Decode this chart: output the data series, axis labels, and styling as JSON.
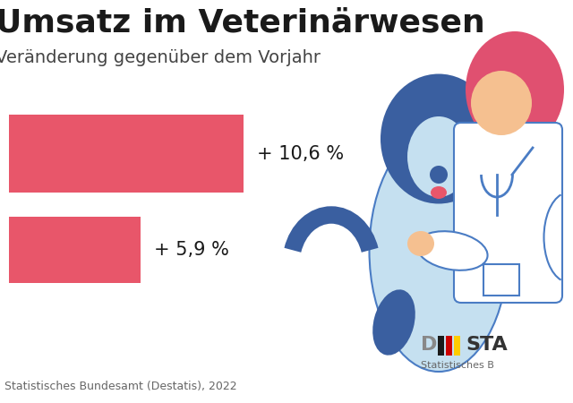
{
  "title_line1": "Umsatz im Veterinärwesen",
  "title_line2": "Veränderung gegenüber dem Vorjahr",
  "bar1_value": 10.6,
  "bar2_value": 5.9,
  "bar1_label": "+ 10,6 %",
  "bar2_label": "+ 5,9 %",
  "bar_color": "#E8566A",
  "background_color": "#FFFFFF",
  "source_text": "Statistisches Bundesamt (Destatis), 2022",
  "dog_dark_blue": "#3A5FA0",
  "dog_light_blue": "#C5E0F0",
  "dog_stroke": "#4A7CC4",
  "vet_hair_color": "#E05070",
  "vet_skin_color": "#F5C090",
  "vet_coat_color": "#FFFFFF",
  "vet_steth_color": "#4A7CC4",
  "logo_d_color": "#888888",
  "logo_sta_color": "#333333",
  "logo_bar1": "#1a1a1a",
  "logo_bar2": "#CC0000",
  "logo_bar3": "#FFCC00"
}
